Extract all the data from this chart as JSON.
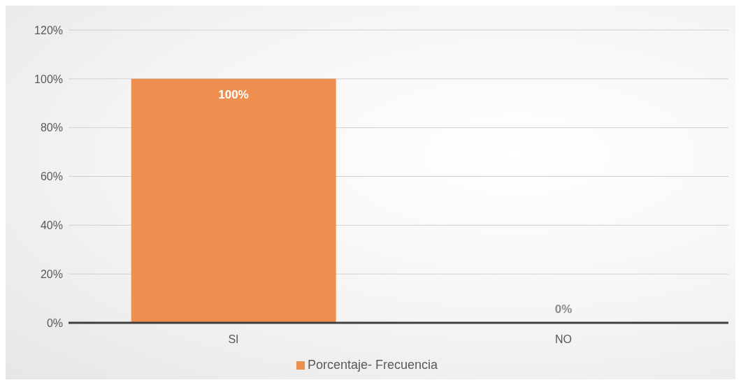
{
  "chart_data": {
    "type": "bar",
    "categories": [
      "SI",
      "NO"
    ],
    "series": [
      {
        "name": "Porcentaje- Frecuencia",
        "color": "#ef8f4f",
        "values": [
          100,
          0
        ],
        "value_labels": [
          "100%",
          "0%"
        ]
      }
    ],
    "ylim": [
      0,
      120
    ],
    "yticks": [
      {
        "value": 0,
        "label": "0%"
      },
      {
        "value": 20,
        "label": "20%"
      },
      {
        "value": 40,
        "label": "40%"
      },
      {
        "value": 60,
        "label": "60%"
      },
      {
        "value": 80,
        "label": "80%"
      },
      {
        "value": 100,
        "label": "100%"
      },
      {
        "value": 120,
        "label": "120%"
      }
    ],
    "grid": "y",
    "legend": "bottom"
  }
}
